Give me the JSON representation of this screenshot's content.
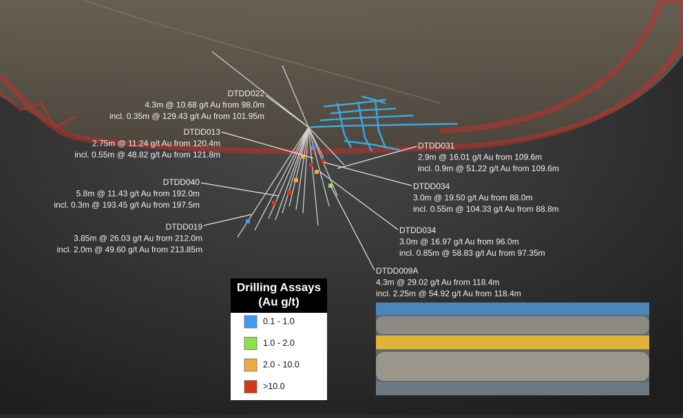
{
  "annotations": [
    {
      "hole": "DTDD022",
      "line1": "4.3m @ 10.68 g/t Au from 98.0m",
      "line2": "incl. 0.35m @ 129.43 g/t Au from 101.95m"
    },
    {
      "hole": "DTDD013",
      "line1": "2.75m @ 11.24 g/t Au from 120.4m",
      "line2": "incl. 0.55m @ 48.82 g/t Au from 121.8m"
    },
    {
      "hole": "DTDD040",
      "line1": "5.8m @ 11.43 g/t Au from 192.0m",
      "line2": "incl. 0.3m @ 193.45 g/t Au from 197.5m"
    },
    {
      "hole": "DTDD019",
      "line1": "3.85m @ 26.03 g/t Au from 212.0m",
      "line2": "incl. 2.0m @ 49.60 g/t Au from 213.85m"
    },
    {
      "hole": "DTDD031",
      "line1": "2.9m @ 16.01 g/t Au from 109.6m",
      "line2": "incl. 0.9m @ 51.22 g/t Au from 109.6m"
    },
    {
      "hole": "DTDD034",
      "line1": "3.0m @ 19.50 g/t Au from 88.0m",
      "line2": "incl. 0.55m @ 104.33 g/t Au from 88.8m"
    },
    {
      "hole": "DTDD034",
      "line1": "3.0m @ 16.97 g/t Au from 96.0m",
      "line2": "incl. 0.85m @ 58.83 g/t Au from 97.35m"
    },
    {
      "hole": "DTDD009A",
      "line1": "4.3m @ 29.02 g/t Au from 118.4m",
      "line2": "incl. 2.25m @ 54.92 g/t Au from 118.4m"
    }
  ],
  "legend": {
    "title": [
      "Drilling Assays",
      "(Au g/t)"
    ],
    "items": [
      {
        "label": "0.1 - 1.0",
        "color": "#3f9bef"
      },
      {
        "label": "1.0 - 2.0",
        "color": "#8ee04a"
      },
      {
        "label": "2.0 - 10.0",
        "color": "#f2a93b"
      },
      {
        "label": ">10.0",
        "color": "#d8361a"
      }
    ]
  }
}
